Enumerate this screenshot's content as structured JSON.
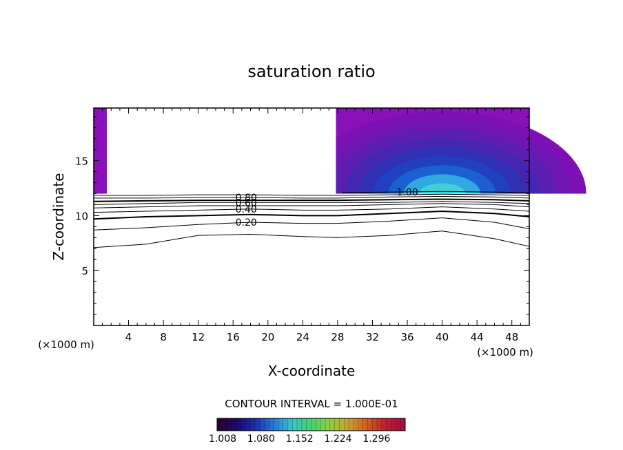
{
  "chart_data": {
    "type": "contour",
    "title": "saturation ratio",
    "xlabel": "X-coordinate",
    "ylabel": "Z-coordinate",
    "x_unit_label": "(×1000 m)",
    "y_unit_label": "(×1000 m)",
    "xlim": [
      0,
      50
    ],
    "ylim": [
      0,
      19.8
    ],
    "x_ticks": [
      4,
      8,
      12,
      16,
      20,
      24,
      28,
      32,
      36,
      40,
      44,
      48
    ],
    "y_ticks": [
      5,
      10,
      15
    ],
    "grid": false,
    "contour_interval_text": "CONTOUR INTERVAL = 1.000E-01",
    "contour_lines": [
      {
        "level": 0.1,
        "label": "",
        "heavy": false,
        "points": [
          [
            0,
            7.1
          ],
          [
            6,
            7.4
          ],
          [
            12,
            8.2
          ],
          [
            18,
            8.3
          ],
          [
            24,
            8.1
          ],
          [
            28,
            8.0
          ],
          [
            34,
            8.2
          ],
          [
            40,
            8.6
          ],
          [
            46,
            7.9
          ],
          [
            50,
            7.2
          ]
        ]
      },
      {
        "level": 0.2,
        "label": "0.20",
        "heavy": false,
        "points": [
          [
            0,
            8.7
          ],
          [
            6,
            8.9
          ],
          [
            12,
            9.2
          ],
          [
            18,
            9.4
          ],
          [
            24,
            9.3
          ],
          [
            28,
            9.3
          ],
          [
            34,
            9.5
          ],
          [
            40,
            9.8
          ],
          [
            46,
            9.4
          ],
          [
            50,
            8.8
          ]
        ]
      },
      {
        "level": 0.3,
        "label": "",
        "heavy": true,
        "points": [
          [
            0,
            9.7
          ],
          [
            6,
            9.9
          ],
          [
            12,
            10.0
          ],
          [
            18,
            10.1
          ],
          [
            24,
            10.0
          ],
          [
            28,
            10.0
          ],
          [
            34,
            10.2
          ],
          [
            40,
            10.4
          ],
          [
            46,
            10.2
          ],
          [
            50,
            9.9
          ]
        ]
      },
      {
        "level": 0.4,
        "label": "0.40",
        "heavy": false,
        "points": [
          [
            0,
            10.3
          ],
          [
            6,
            10.4
          ],
          [
            12,
            10.5
          ],
          [
            18,
            10.6
          ],
          [
            24,
            10.5
          ],
          [
            28,
            10.5
          ],
          [
            34,
            10.6
          ],
          [
            40,
            10.8
          ],
          [
            46,
            10.6
          ],
          [
            50,
            10.4
          ]
        ]
      },
      {
        "level": 0.5,
        "label": "",
        "heavy": false,
        "points": [
          [
            0,
            10.7
          ],
          [
            6,
            10.8
          ],
          [
            12,
            10.9
          ],
          [
            18,
            10.9
          ],
          [
            24,
            10.9
          ],
          [
            28,
            10.9
          ],
          [
            34,
            11.0
          ],
          [
            40,
            11.1
          ],
          [
            46,
            11.0
          ],
          [
            50,
            10.8
          ]
        ]
      },
      {
        "level": 0.6,
        "label": "0.60",
        "heavy": false,
        "points": [
          [
            0,
            11.0
          ],
          [
            6,
            11.1
          ],
          [
            12,
            11.2
          ],
          [
            18,
            11.2
          ],
          [
            24,
            11.2
          ],
          [
            28,
            11.2
          ],
          [
            34,
            11.2
          ],
          [
            40,
            11.3
          ],
          [
            46,
            11.2
          ],
          [
            50,
            11.1
          ]
        ]
      },
      {
        "level": 0.7,
        "label": "",
        "heavy": true,
        "points": [
          [
            0,
            11.3
          ],
          [
            6,
            11.35
          ],
          [
            12,
            11.4
          ],
          [
            18,
            11.4
          ],
          [
            24,
            11.4
          ],
          [
            28,
            11.4
          ],
          [
            34,
            11.45
          ],
          [
            40,
            11.5
          ],
          [
            46,
            11.45
          ],
          [
            50,
            11.35
          ]
        ]
      },
      {
        "level": 0.8,
        "label": "0.80",
        "heavy": false,
        "points": [
          [
            0,
            11.6
          ],
          [
            6,
            11.6
          ],
          [
            12,
            11.65
          ],
          [
            18,
            11.65
          ],
          [
            24,
            11.6
          ],
          [
            28,
            11.6
          ],
          [
            34,
            11.7
          ],
          [
            40,
            11.75
          ],
          [
            46,
            11.7
          ],
          [
            50,
            11.6
          ]
        ]
      },
      {
        "level": 0.9,
        "label": "",
        "heavy": false,
        "points": [
          [
            0,
            11.85
          ],
          [
            6,
            11.85
          ],
          [
            12,
            11.9
          ],
          [
            18,
            11.9
          ],
          [
            24,
            11.85
          ],
          [
            28,
            11.85
          ],
          [
            34,
            11.9
          ],
          [
            40,
            11.95
          ],
          [
            46,
            11.9
          ],
          [
            50,
            11.85
          ]
        ]
      },
      {
        "level": 1.0,
        "label": "1.00",
        "heavy": false,
        "points": [
          [
            28.5,
            12.1
          ],
          [
            34,
            12.15
          ],
          [
            40,
            12.2
          ],
          [
            46,
            12.15
          ],
          [
            50,
            12.1
          ]
        ]
      }
    ],
    "supersaturated_regions": [
      {
        "x_range": [
          0,
          1.5
        ],
        "z_range": [
          12.0,
          19.8
        ]
      },
      {
        "x_range": [
          27.8,
          50
        ],
        "z_range": [
          12.0,
          19.8
        ],
        "max_near": [
          40,
          12.3
        ]
      }
    ],
    "colorbar": {
      "min": 1.008,
      "max": 1.36,
      "tick_labels": [
        "1.008",
        "1.080",
        "1.152",
        "1.224",
        "1.296"
      ],
      "colors": [
        "#2a0033",
        "#1a0a6e",
        "#1c2fb0",
        "#2a7ad8",
        "#36c8c8",
        "#46d070",
        "#8ed040",
        "#c8a030",
        "#d06020",
        "#c02030",
        "#a01040"
      ]
    },
    "fill_colors": [
      "#8a10b8",
      "#7d10b5",
      "#6d16b2",
      "#5a1eb0",
      "#4626b0",
      "#3030b5",
      "#2040c0",
      "#1a60d0",
      "#30a8e0",
      "#40d0d8"
    ]
  }
}
